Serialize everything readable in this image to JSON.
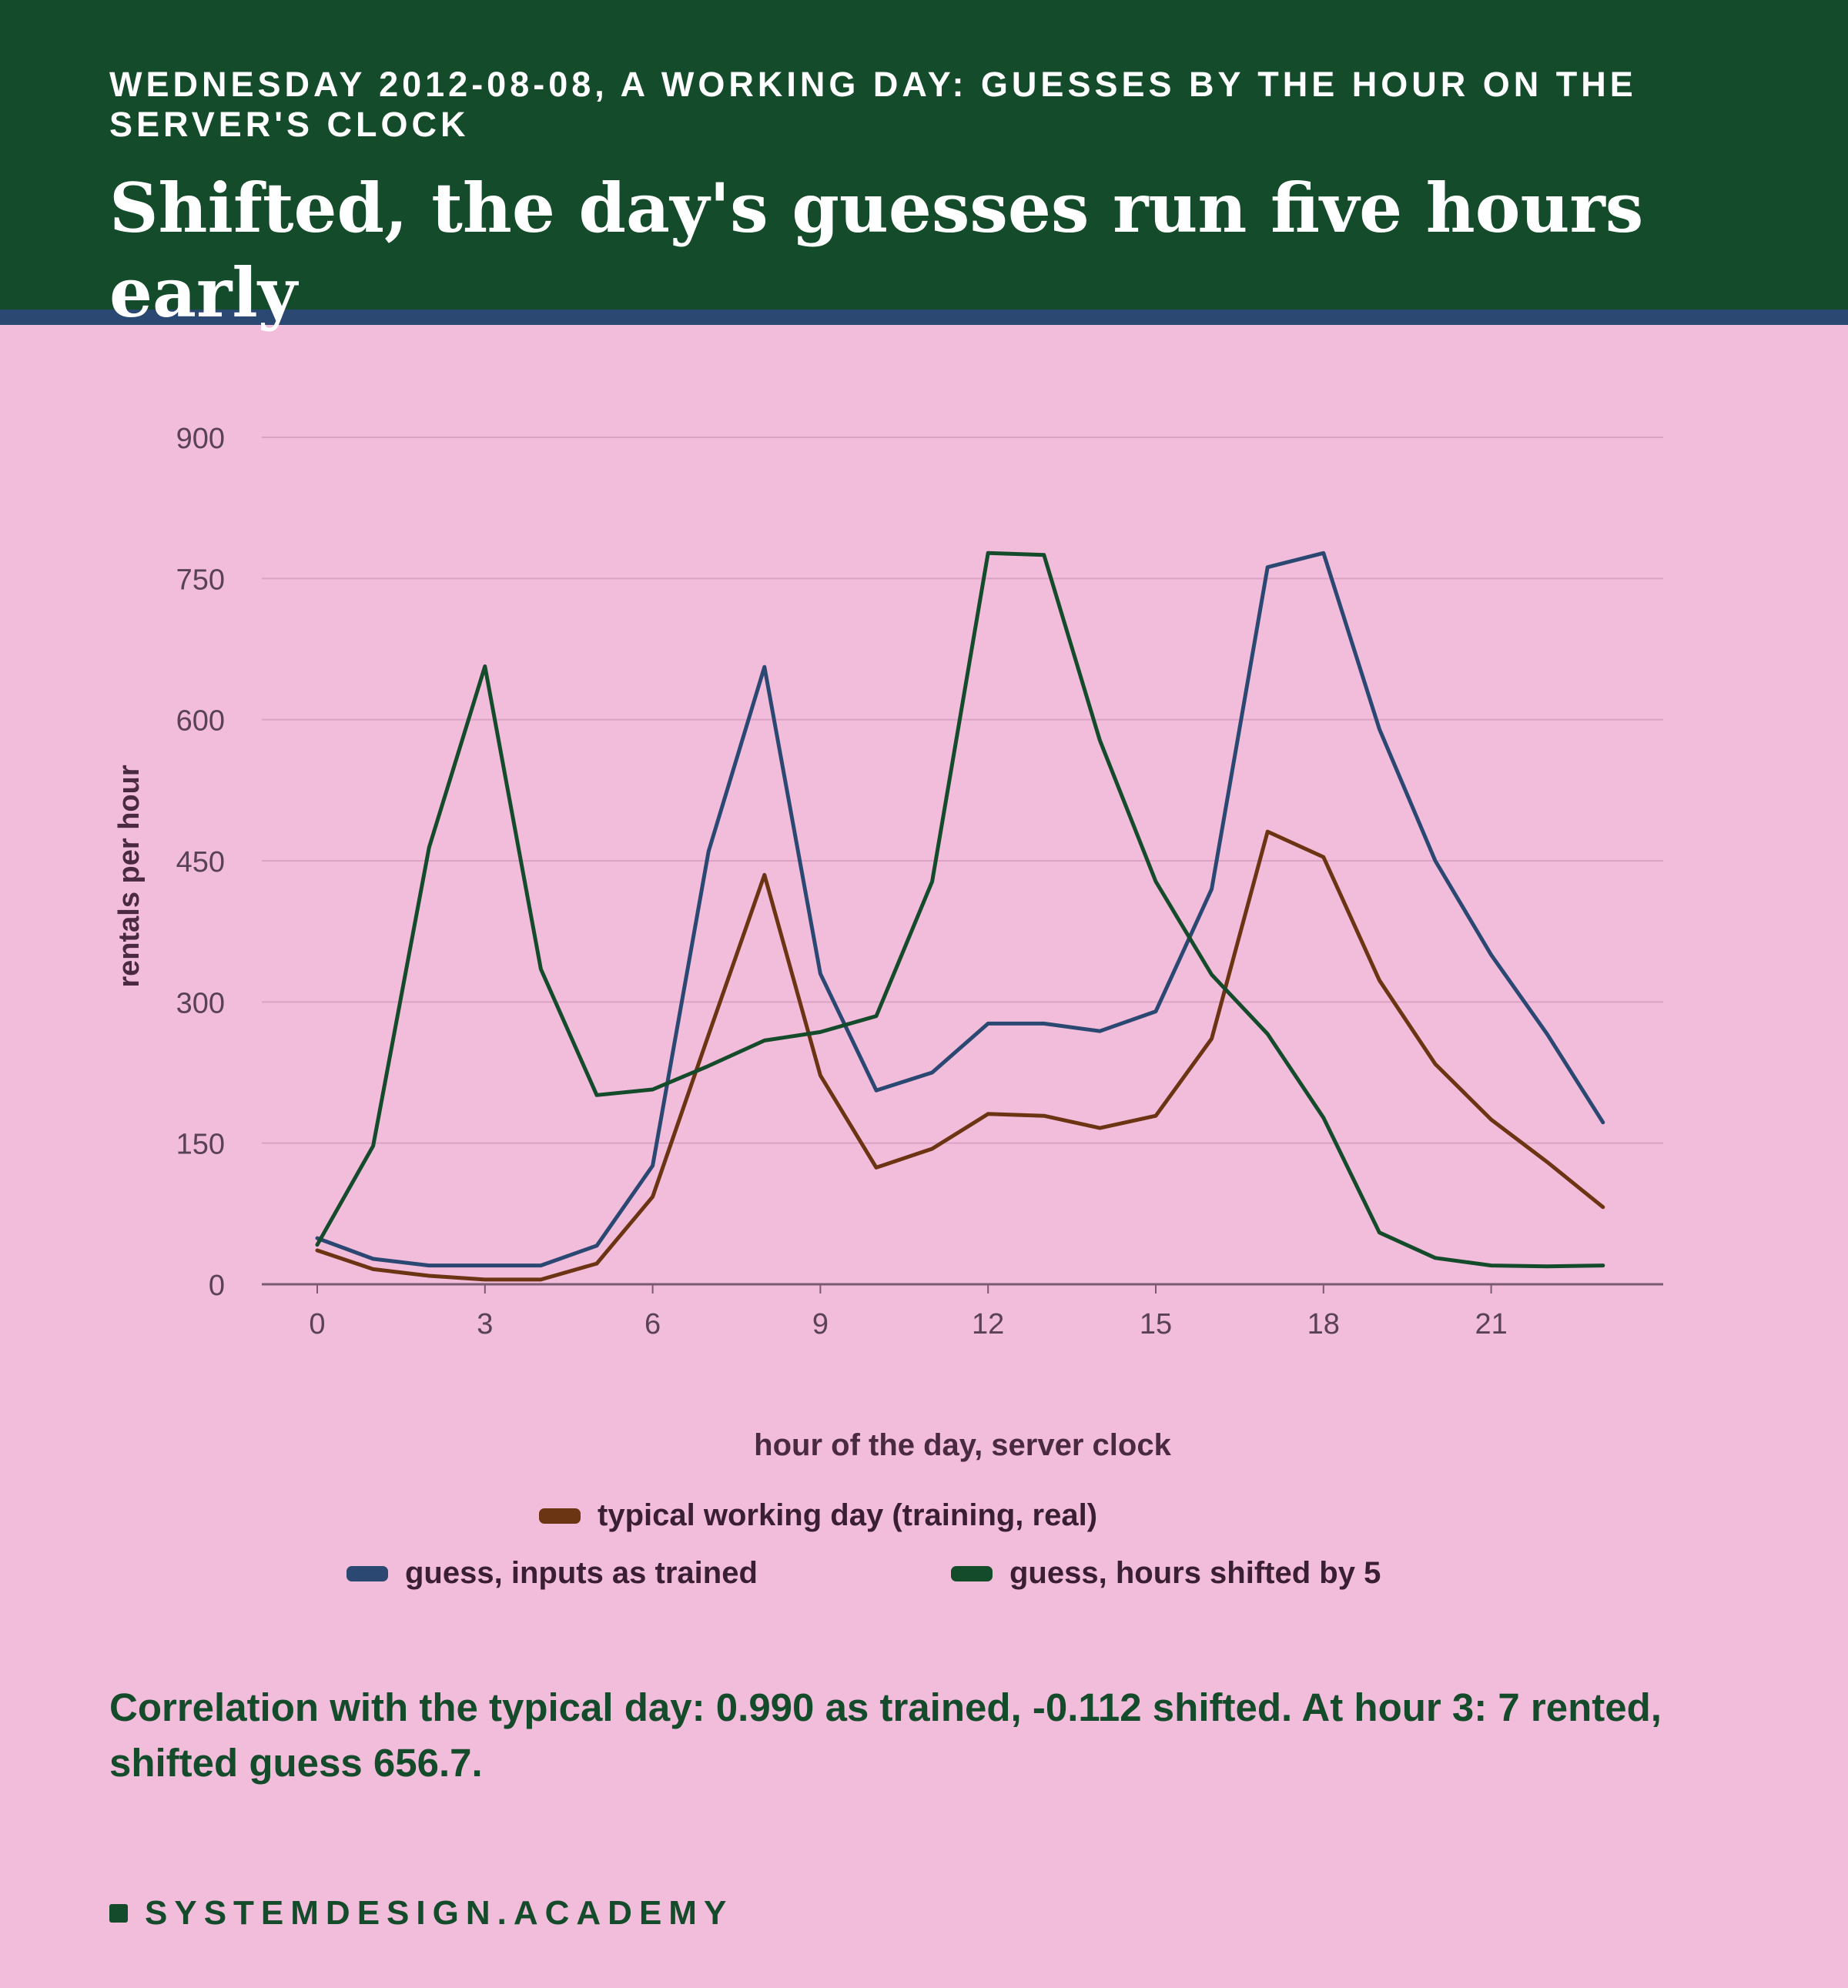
{
  "header": {
    "kicker": "WEDNESDAY 2012-08-08, A WORKING DAY: GUESSES BY THE HOUR ON THE SERVER'S CLOCK",
    "headline": "Shifted, the day's guesses run five hours early"
  },
  "colors": {
    "header_bg": "#144b2a",
    "header_rule": "#2a4872",
    "page_bg": "#f2bcdb",
    "typical": "#6b3412",
    "as_trained": "#2a4872",
    "shifted": "#144b2a"
  },
  "chart_data": {
    "type": "line",
    "xlabel": "hour of the day, server clock",
    "ylabel": "rentals per hour",
    "x": [
      0,
      1,
      2,
      3,
      4,
      5,
      6,
      7,
      8,
      9,
      10,
      11,
      12,
      13,
      14,
      15,
      16,
      17,
      18,
      19,
      20,
      21,
      22,
      23
    ],
    "xlim": [
      -1,
      24
    ],
    "ylim": [
      0,
      900
    ],
    "x_ticks": [
      0,
      3,
      6,
      9,
      12,
      15,
      18,
      21
    ],
    "y_ticks": [
      0,
      150,
      300,
      450,
      600,
      750,
      900
    ],
    "grid": "horizontal",
    "legend_position": "bottom",
    "series": [
      {
        "name": "typical working day (training, real)",
        "color": "#6b3412",
        "values": [
          36,
          16,
          9,
          5,
          5,
          22,
          93,
          265,
          435,
          222,
          124,
          144,
          181,
          179,
          166,
          179,
          261,
          481,
          454,
          323,
          234,
          175,
          130,
          82
        ]
      },
      {
        "name": "guess, inputs as trained",
        "color": "#2a4872",
        "values": [
          49,
          27,
          20,
          20,
          20,
          41,
          126,
          460,
          656,
          330,
          206,
          225,
          277,
          277,
          269,
          290,
          420,
          762,
          777,
          590,
          450,
          350,
          266,
          172
        ]
      },
      {
        "name": "guess, hours shifted by 5",
        "color": "#144b2a",
        "values": [
          42,
          147,
          464,
          656.7,
          335,
          201,
          207,
          232,
          259,
          268,
          285,
          428,
          777,
          775,
          578,
          428,
          329,
          266,
          177,
          55,
          28,
          20,
          19,
          20
        ]
      }
    ]
  },
  "caption": "Correlation with the typical day: 0.990 as trained, -0.112 shifted. At hour 3: 7 rented, shifted guess 656.7.",
  "brand": "SYSTEMDESIGN.ACADEMY"
}
